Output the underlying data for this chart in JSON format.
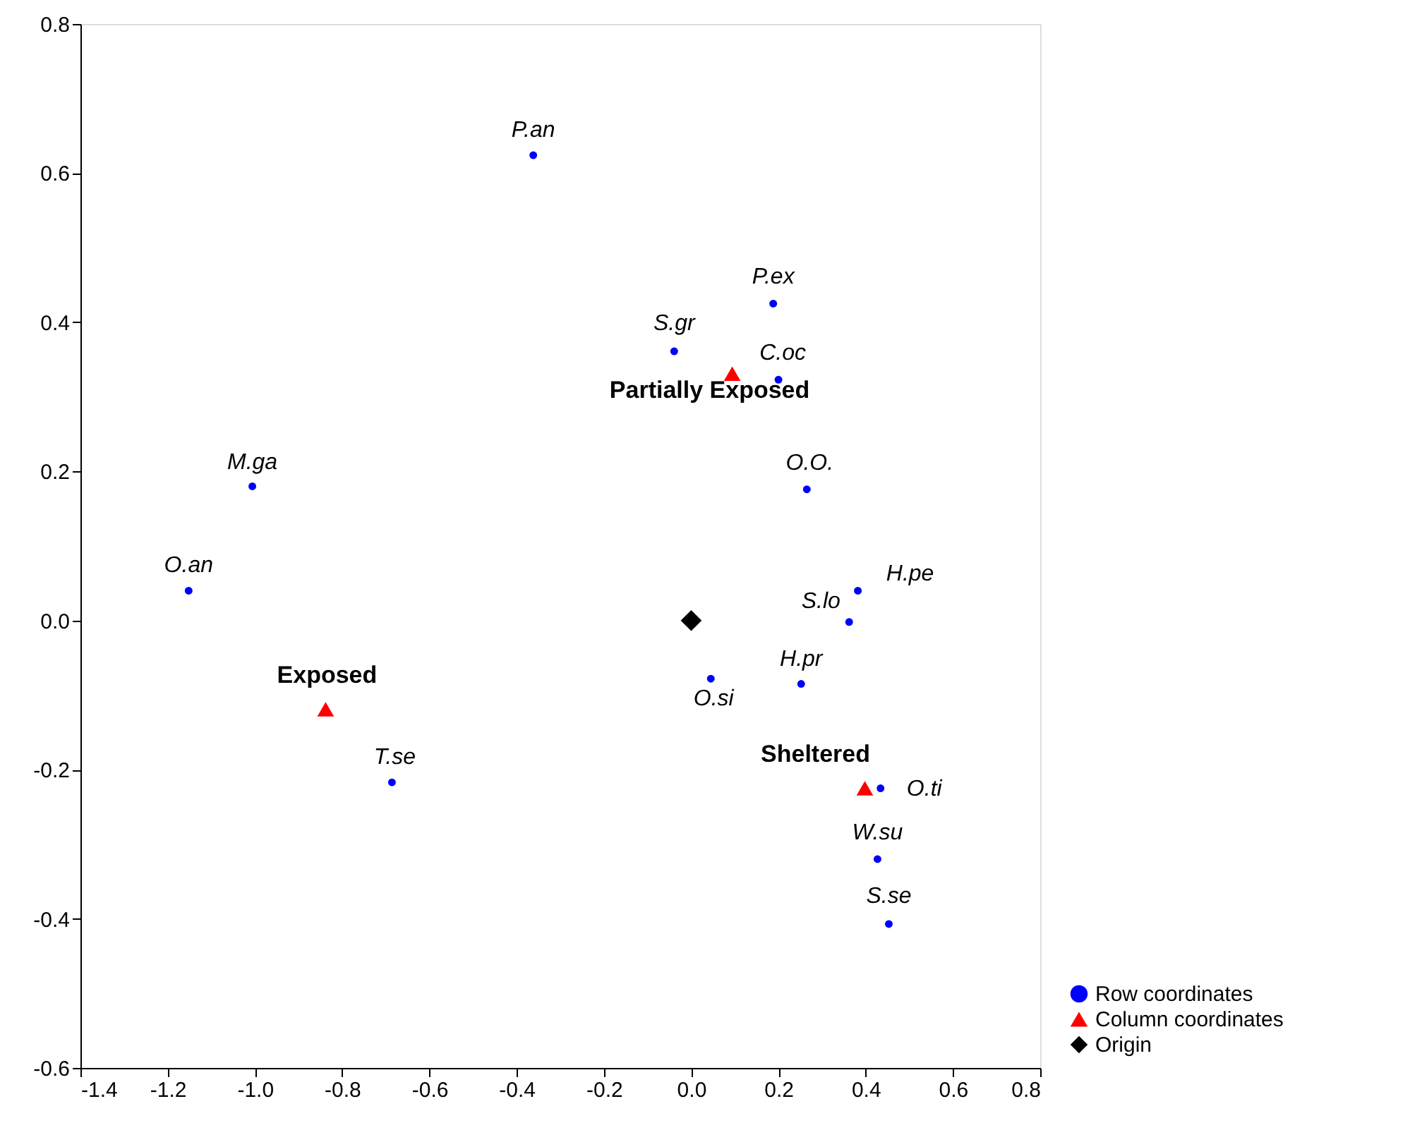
{
  "chart_data": {
    "type": "scatter",
    "xlim": [
      -1.4,
      0.8
    ],
    "ylim": [
      -0.6,
      0.8
    ],
    "xticks": [
      {
        "value": -1.4,
        "label": "-1.4"
      },
      {
        "value": -1.2,
        "label": "-1.2"
      },
      {
        "value": -1,
        "label": "-1.0"
      },
      {
        "value": -0.8,
        "label": "-0.8"
      },
      {
        "value": -0.6,
        "label": "-0.6"
      },
      {
        "value": -0.4,
        "label": "-0.4"
      },
      {
        "value": -0.2,
        "label": "-0.2"
      },
      {
        "value": 0,
        "label": "0.0"
      },
      0.2,
      0.4,
      0.6,
      0.8
    ],
    "yticks": [
      {
        "value": -0.6,
        "label": "-0.6"
      },
      {
        "value": -0.4,
        "label": "-0.4"
      },
      {
        "value": -0.2,
        "label": "-0.2"
      },
      {
        "value": 0,
        "label": "0.0"
      },
      0.2,
      0.4,
      0.6,
      0.8
    ],
    "grid": false,
    "legend": "bottom right",
    "series": [
      {
        "name": "Row coordinates",
        "color": "#0000ff",
        "marker": "circle",
        "x": [
          -0.362,
          0.188,
          -0.039,
          0.2,
          -1.006,
          0.265,
          -1.152,
          0.382,
          0.362,
          0.252,
          0.045,
          -0.686,
          0.434,
          0.427,
          0.453
        ],
        "values": [
          0.624,
          0.425,
          0.361,
          0.323,
          0.18,
          0.176,
          0.04,
          0.04,
          -0.002,
          -0.085,
          -0.078,
          -0.217,
          -0.225,
          -0.32,
          -0.407
        ]
      },
      {
        "name": "Column coordinates",
        "color": "#ff0000",
        "marker": "triangle",
        "x": [
          -0.838,
          0.094,
          0.398
        ],
        "values": [
          -0.119,
          0.331,
          -0.225
        ]
      },
      {
        "name": "Origin",
        "color": "#000000",
        "marker": "diamond",
        "x": [
          0.0
        ],
        "values": [
          0.0
        ]
      }
    ],
    "annotations": [
      {
        "text": "P.an",
        "x": -0.362,
        "y": 0.624
      },
      {
        "text": "P.ex",
        "x": 0.188,
        "y": 0.425
      },
      {
        "text": "S.gr",
        "x": -0.039,
        "y": 0.361
      },
      {
        "text": "C.oc",
        "x": 0.2,
        "y": 0.323
      },
      {
        "text": "M.ga",
        "x": -1.006,
        "y": 0.18
      },
      {
        "text": "O.O.",
        "x": 0.265,
        "y": 0.176
      },
      {
        "text": "O.an",
        "x": -1.152,
        "y": 0.04
      },
      {
        "text": "H.pe",
        "x": 0.382,
        "y": 0.04
      },
      {
        "text": "S.lo",
        "x": 0.362,
        "y": -0.002
      },
      {
        "text": "H.pr",
        "x": 0.252,
        "y": -0.085
      },
      {
        "text": "O.si",
        "x": 0.045,
        "y": -0.078
      },
      {
        "text": "T.se",
        "x": -0.686,
        "y": -0.217
      },
      {
        "text": "O.ti",
        "x": 0.434,
        "y": -0.225
      },
      {
        "text": "W.su",
        "x": 0.427,
        "y": -0.32
      },
      {
        "text": "S.se",
        "x": 0.453,
        "y": -0.407
      },
      {
        "text": "Exposed",
        "x": -0.838,
        "y": -0.119
      },
      {
        "text": "Partially Exposed",
        "x": 0.094,
        "y": 0.331
      },
      {
        "text": "Sheltered",
        "x": 0.398,
        "y": -0.225
      }
    ]
  }
}
